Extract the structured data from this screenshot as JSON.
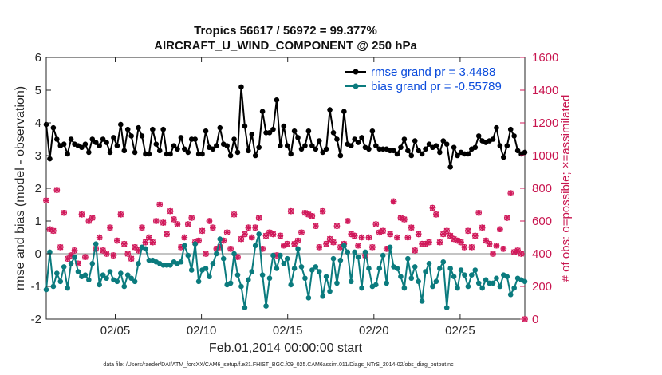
{
  "chart_data": {
    "type": "line",
    "title_line1": "Tropics 56617 / 56972 = 99.377%",
    "title_line2": "AIRCRAFT_U_WIND_COMPONENT @ 250 hPa",
    "xlabel": "Feb.01,2014 00:00:00 start",
    "ylabel_left": "rmse and bias (model - observation)",
    "ylabel_right": "# of obs: o=possible; ×=assimilated",
    "footnote": "data file: /Users/raeder/DAI/ATM_forcXX/CAM6_setup/f.e21.FHIST_BGC.f09_025.CAM6assim.011/Diags_NTrS_2014-02/obs_diag_output.nc",
    "xlim": [
      1.0,
      28.75
    ],
    "ylim_left": [
      -2,
      6
    ],
    "ylim_right": [
      0,
      1600
    ],
    "x_ticks": [
      5,
      10,
      15,
      20,
      25
    ],
    "x_tick_labels": [
      "02/05",
      "02/10",
      "02/15",
      "02/20",
      "02/25"
    ],
    "y_ticks_left": [
      -2,
      -1,
      0,
      1,
      2,
      3,
      4,
      5,
      6
    ],
    "y_ticks_right": [
      0,
      200,
      400,
      600,
      800,
      1000,
      1200,
      1400,
      1600
    ],
    "colors": {
      "rmse": "#000000",
      "bias": "#0b7b7e",
      "obs": "#d0185a",
      "legend_text": "#0a4bdc",
      "zero_line": "#b0b0b0"
    },
    "series": [
      {
        "name": "rmse",
        "legend": "rmse grand pr = 3.4488",
        "values": [
          3.95,
          2.9,
          3.85,
          3.5,
          3.3,
          3.35,
          3.05,
          3.5,
          3.35,
          3.3,
          3.25,
          3.35,
          3.1,
          3.5,
          3.4,
          3.3,
          3.5,
          3.4,
          3.1,
          3.55,
          3.3,
          3.95,
          3.15,
          3.8,
          3.6,
          3.1,
          3.85,
          3.6,
          3.05,
          3.05,
          3.8,
          3.35,
          3.15,
          3.8,
          3.05,
          3.05,
          3.3,
          3.2,
          3.55,
          3.2,
          3.1,
          3.5,
          3.5,
          3.05,
          3.05,
          3.75,
          3.25,
          3.2,
          3.3,
          3.85,
          3.35,
          3.3,
          3.0,
          3.5,
          3.1,
          5.1,
          3.9,
          3.15,
          3.65,
          3.0,
          3.25,
          4.35,
          3.7,
          3.7,
          3.8,
          4.7,
          3.3,
          3.9,
          3.3,
          3.05,
          3.75,
          3.55,
          3.2,
          3.3,
          3.75,
          3.3,
          3.2,
          3.45,
          3.1,
          3.2,
          4.4,
          3.7,
          3.5,
          3.0,
          4.35,
          3.35,
          3.3,
          3.5,
          3.4,
          3.55,
          3.25,
          3.2,
          3.75,
          3.3,
          3.2,
          3.2,
          3.2,
          3.15,
          3.15,
          3.05,
          3.25,
          3.5,
          3.15,
          3.0,
          3.45,
          3.15,
          3.05,
          3.2,
          3.35,
          3.25,
          3.3,
          3.1,
          3.45,
          3.35,
          2.65,
          3.25,
          3.0,
          3.1,
          3.05,
          3.05,
          3.2,
          3.25,
          3.6,
          3.45,
          3.4,
          3.45,
          3.5,
          3.85,
          3.3,
          2.95,
          3.3,
          3.8,
          3.6,
          3.15,
          3.05,
          3.1
        ]
      },
      {
        "name": "bias",
        "legend": "bias grand pr = -0.55789",
        "values": [
          -1.1,
          0.05,
          -1.0,
          -0.6,
          -0.85,
          -0.4,
          -1.05,
          -0.3,
          -0.1,
          -0.55,
          -0.7,
          -0.65,
          -0.8,
          -0.3,
          0.3,
          -0.95,
          -0.65,
          -0.75,
          -0.55,
          -0.8,
          -0.85,
          -0.6,
          -1.0,
          -0.65,
          -0.75,
          -0.85,
          -0.3,
          0.2,
          0.15,
          -0.2,
          -0.2,
          -0.25,
          -0.3,
          -0.35,
          -0.35,
          -0.35,
          -0.25,
          -0.3,
          -0.25,
          0.25,
          -0.05,
          -0.5,
          0.3,
          -0.85,
          -0.5,
          -0.45,
          -0.7,
          -0.3,
          0.0,
          0.45,
          -0.15,
          -0.95,
          -0.9,
          0.0,
          -0.65,
          -1.0,
          -1.65,
          -0.8,
          -0.55,
          0.25,
          0.6,
          -0.65,
          -1.6,
          -0.75,
          -0.05,
          -0.45,
          -0.05,
          -0.3,
          -0.15,
          -0.95,
          -0.45,
          0.15,
          -0.4,
          -0.75,
          -1.35,
          -0.5,
          -0.4,
          -0.55,
          -1.3,
          -0.7,
          -1.15,
          -0.15,
          -0.9,
          -0.2,
          0.25,
          0.05,
          -0.85,
          0.05,
          -0.1,
          -1.05,
          0.05,
          -0.45,
          -1.0,
          -0.95,
          -0.45,
          -0.05,
          -0.9,
          0.2,
          -0.4,
          -0.45,
          -0.7,
          -1.05,
          -0.15,
          -0.75,
          -0.4,
          -0.85,
          -1.45,
          -0.55,
          -0.3,
          -1.0,
          -0.85,
          -0.45,
          -0.25,
          -1.65,
          -0.45,
          -0.7,
          -1.05,
          -0.5,
          -0.65,
          -1.0,
          -0.65,
          -0.5,
          -0.9,
          -1.05,
          -0.8,
          -0.9,
          -0.9,
          -0.75,
          -1.0,
          -0.65,
          -0.7,
          -1.25,
          -1.05,
          -0.75,
          -0.8,
          -0.85
        ]
      },
      {
        "name": "obs_assimilated",
        "legend": "",
        "values": [
          725,
          550,
          540,
          790,
          440,
          650,
          370,
          390,
          420,
          340,
          640,
          380,
          600,
          620,
          430,
          500,
          420,
          400,
          560,
          390,
          480,
          640,
          460,
          400,
          370,
          440,
          420,
          560,
          470,
          500,
          470,
          600,
          700,
          590,
          520,
          660,
          610,
          580,
          440,
          500,
          580,
          620,
          470,
          480,
          540,
          400,
          600,
          560,
          430,
          440,
          480,
          530,
          430,
          640,
          380,
          490,
          520,
          560,
          500,
          560,
          620,
          430,
          510,
          530,
          520,
          390,
          510,
          450,
          460,
          660,
          460,
          480,
          530,
          650,
          640,
          630,
          570,
          440,
          660,
          460,
          490,
          470,
          570,
          440,
          460,
          600,
          520,
          510,
          450,
          500,
          390,
          500,
          440,
          580,
          530,
          540,
          430,
          520,
          720,
          500,
          620,
          610,
          500,
          560,
          420,
          520,
          460,
          460,
          470,
          680,
          640,
          470,
          520,
          540,
          510,
          490,
          480,
          470,
          440,
          540,
          440,
          510,
          650,
          560,
          480,
          460,
          400,
          450,
          550,
          430,
          620,
          770,
          410,
          420,
          400,
          0
        ]
      },
      {
        "name": "obs_possible",
        "legend": "",
        "values": [
          725,
          550,
          540,
          790,
          440,
          650,
          370,
          390,
          420,
          340,
          640,
          380,
          600,
          620,
          430,
          500,
          420,
          400,
          560,
          390,
          480,
          640,
          460,
          400,
          370,
          440,
          420,
          560,
          470,
          500,
          470,
          600,
          700,
          590,
          520,
          660,
          610,
          580,
          440,
          500,
          580,
          620,
          470,
          480,
          540,
          400,
          600,
          560,
          430,
          440,
          480,
          530,
          430,
          640,
          380,
          490,
          520,
          560,
          500,
          560,
          620,
          430,
          510,
          530,
          520,
          390,
          510,
          450,
          460,
          660,
          460,
          480,
          530,
          650,
          640,
          630,
          570,
          440,
          660,
          460,
          490,
          470,
          570,
          440,
          460,
          600,
          520,
          510,
          450,
          500,
          390,
          500,
          440,
          580,
          530,
          540,
          430,
          520,
          720,
          500,
          620,
          610,
          500,
          560,
          420,
          520,
          460,
          460,
          470,
          680,
          640,
          470,
          520,
          540,
          510,
          490,
          480,
          470,
          440,
          540,
          440,
          510,
          650,
          560,
          480,
          460,
          400,
          450,
          550,
          430,
          620,
          770,
          410,
          420,
          400,
          0
        ]
      }
    ]
  }
}
